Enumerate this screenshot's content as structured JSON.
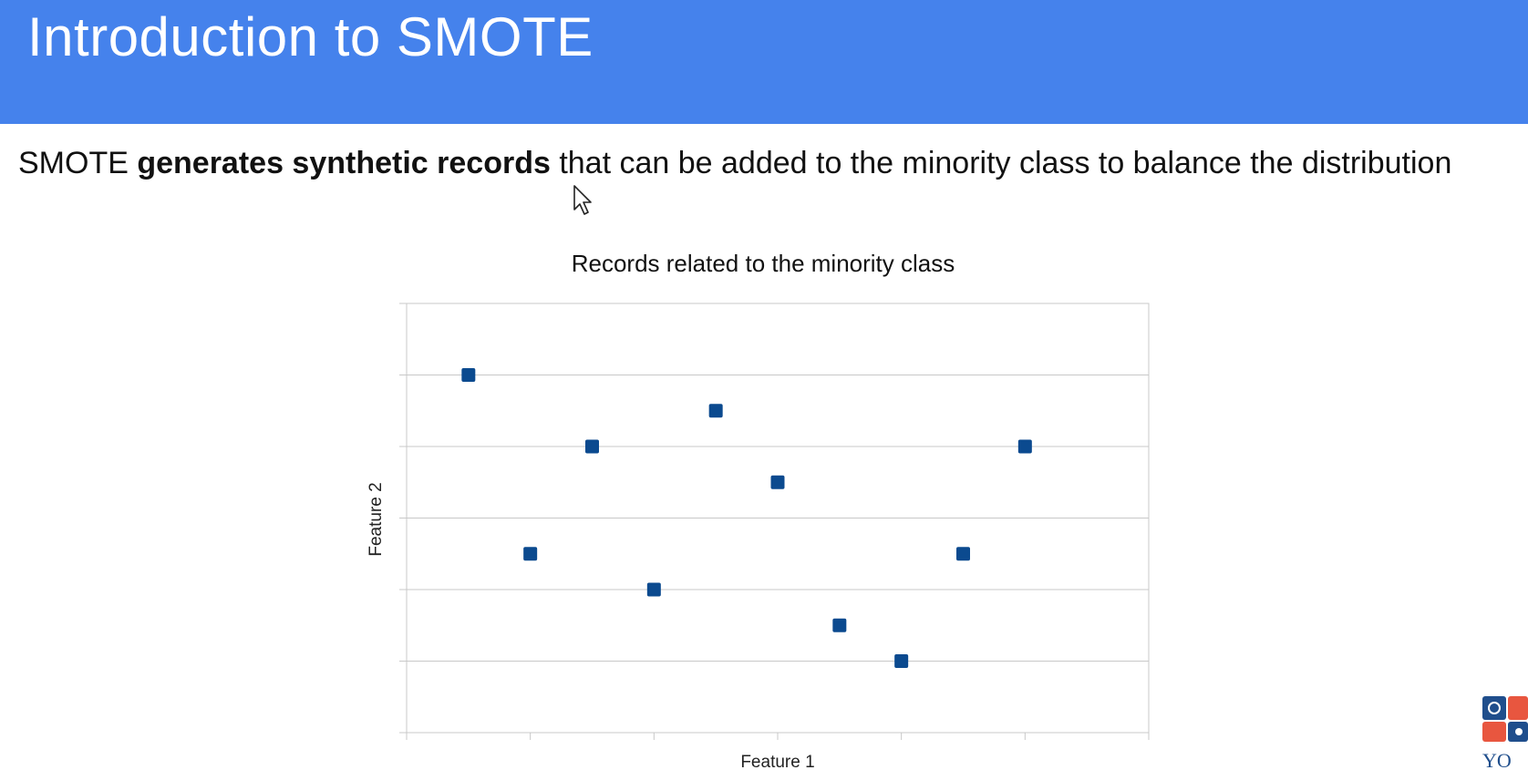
{
  "slide": {
    "title": "Introduction to SMOTE",
    "intro": {
      "prefix": "SMOTE ",
      "bold": "generates synthetic records",
      "suffix": " that can be added to the minority class to balance the distribution"
    }
  },
  "colors": {
    "header": "#4582ec",
    "marker": "#0b4a8f",
    "grid": "#c8c8c8"
  },
  "icons": [
    "cursor-arrow-icon",
    "puzzle-logo-icon"
  ],
  "chart_data": {
    "type": "scatter",
    "title": "Records related to the minority class",
    "xlabel": "Feature 1",
    "ylabel": "Feature 2",
    "xlim": [
      0,
      12
    ],
    "ylim": [
      0,
      6
    ],
    "x_ticks": [
      0,
      2,
      4,
      6,
      8,
      10,
      12
    ],
    "y_ticks": [
      0,
      1,
      2,
      3,
      4,
      5,
      6
    ],
    "tick_labels_shown": false,
    "grid": "horizontal",
    "legend": "none",
    "series": [
      {
        "points": [
          [
            1,
            5
          ],
          [
            2,
            2.5
          ],
          [
            3,
            4
          ],
          [
            4,
            2
          ],
          [
            5,
            4.5
          ],
          [
            6,
            3.5
          ],
          [
            7,
            1.5
          ],
          [
            8,
            1
          ],
          [
            9,
            2.5
          ],
          [
            10,
            4
          ]
        ]
      }
    ]
  }
}
